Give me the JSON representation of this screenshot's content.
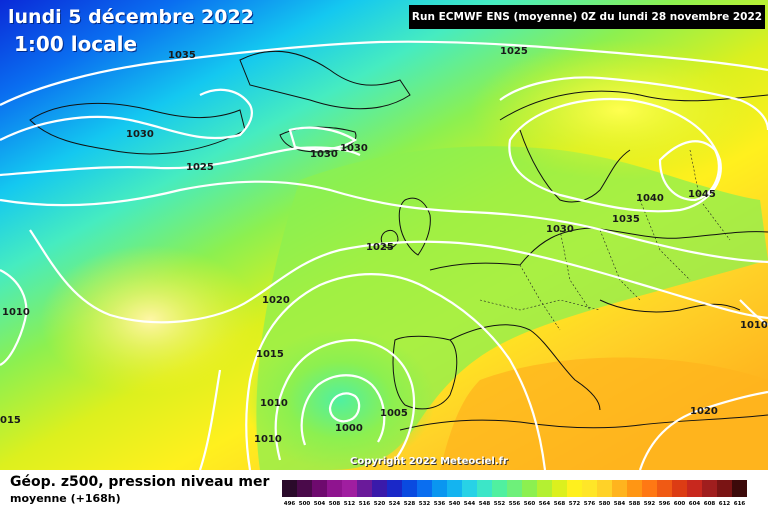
{
  "header": {
    "date": "lundi 5 décembre 2022",
    "time": "1:00 locale",
    "run_info": "Run ECMWF ENS (moyenne) 0Z du lundi 28 novembre 2022"
  },
  "map": {
    "copyright": "Copyright 2022 Meteociel.fr",
    "pressure_labels": [
      {
        "id": "1035-nw",
        "text": "1035"
      },
      {
        "id": "1025-n",
        "text": "1025"
      },
      {
        "id": "1030-greenland",
        "text": "1030"
      },
      {
        "id": "1030-iceland-a",
        "text": "1030"
      },
      {
        "id": "1030-iceland-b",
        "text": "1030"
      },
      {
        "id": "1025-greenland",
        "text": "1025"
      },
      {
        "id": "1040-scandinavia",
        "text": "1040"
      },
      {
        "id": "1045-russia",
        "text": "1045"
      },
      {
        "id": "1035-baltic",
        "text": "1035"
      },
      {
        "id": "1030-denmark",
        "text": "1030"
      },
      {
        "id": "1025-uk",
        "text": "1025"
      },
      {
        "id": "1020-atlantic",
        "text": "1020"
      },
      {
        "id": "1015-atlantic",
        "text": "1015"
      },
      {
        "id": "1010-west",
        "text": "1010"
      },
      {
        "id": "1010-azores",
        "text": "1010"
      },
      {
        "id": "1010-south",
        "text": "1010"
      },
      {
        "id": "1005-low",
        "text": "1005"
      },
      {
        "id": "1000-low",
        "text": "1000"
      },
      {
        "id": "1015-edge",
        "text": "015"
      },
      {
        "id": "1020-east",
        "text": "1020"
      },
      {
        "id": "1010-east-edge",
        "text": "1010"
      }
    ]
  },
  "footer": {
    "title": "Géop. z500, pression niveau mer",
    "subtitle": "moyenne  (+168h)"
  },
  "legend": {
    "values": [
      "496",
      "500",
      "504",
      "508",
      "512",
      "516",
      "520",
      "524",
      "528",
      "532",
      "536",
      "540",
      "544",
      "548",
      "552",
      "556",
      "560",
      "564",
      "568",
      "572",
      "576",
      "580",
      "584",
      "588",
      "592",
      "596",
      "600",
      "604",
      "608",
      "612",
      "616"
    ],
    "colors": [
      "#2a0a2a",
      "#4a0a4a",
      "#6e0a6e",
      "#8f148f",
      "#a01ea0",
      "#6a1a9a",
      "#3a1aaa",
      "#1a28c8",
      "#0a4ae0",
      "#0a6ef0",
      "#0a96f0",
      "#14b4f0",
      "#28d2e6",
      "#3ce6c8",
      "#50f0a0",
      "#6ef07a",
      "#8cf050",
      "#b4f032",
      "#dcf01e",
      "#fff01e",
      "#ffe628",
      "#ffd228",
      "#ffb41e",
      "#ff9614",
      "#ff7814",
      "#f05a14",
      "#dc3c14",
      "#c8281e",
      "#a01e1e",
      "#7a1414",
      "#3c0a0a"
    ]
  }
}
